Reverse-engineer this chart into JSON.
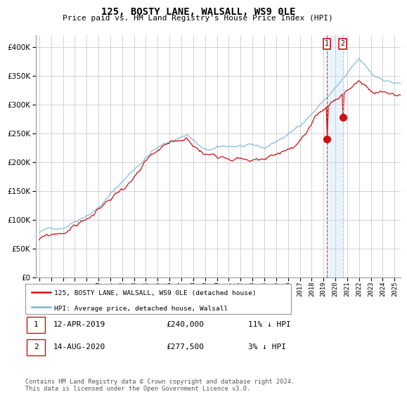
{
  "title": "125, BOSTY LANE, WALSALL, WS9 0LE",
  "subtitle": "Price paid vs. HM Land Registry's House Price Index (HPI)",
  "hpi_label": "HPI: Average price, detached house, Walsall",
  "property_label": "125, BOSTY LANE, WALSALL, WS9 0LE (detached house)",
  "hpi_color": "#7ab4d8",
  "property_color": "#cc1111",
  "annotation1": {
    "label": "1",
    "date": "12-APR-2019",
    "price": "£240,000",
    "hpi_diff": "11% ↓ HPI"
  },
  "annotation2": {
    "label": "2",
    "date": "14-AUG-2020",
    "price": "£277,500",
    "hpi_diff": "3% ↓ HPI"
  },
  "ylim": [
    0,
    420000
  ],
  "yticks": [
    0,
    50000,
    100000,
    150000,
    200000,
    250000,
    300000,
    350000,
    400000
  ],
  "footer": "Contains HM Land Registry data © Crown copyright and database right 2024.\nThis data is licensed under the Open Government Licence v3.0.",
  "background_color": "#ffffff",
  "grid_color": "#cccccc",
  "sale1_t": 2019.28,
  "sale1_price": 240000,
  "sale2_t": 2020.62,
  "sale2_price": 277500,
  "xmin": 1995.0,
  "xmax": 2025.5
}
